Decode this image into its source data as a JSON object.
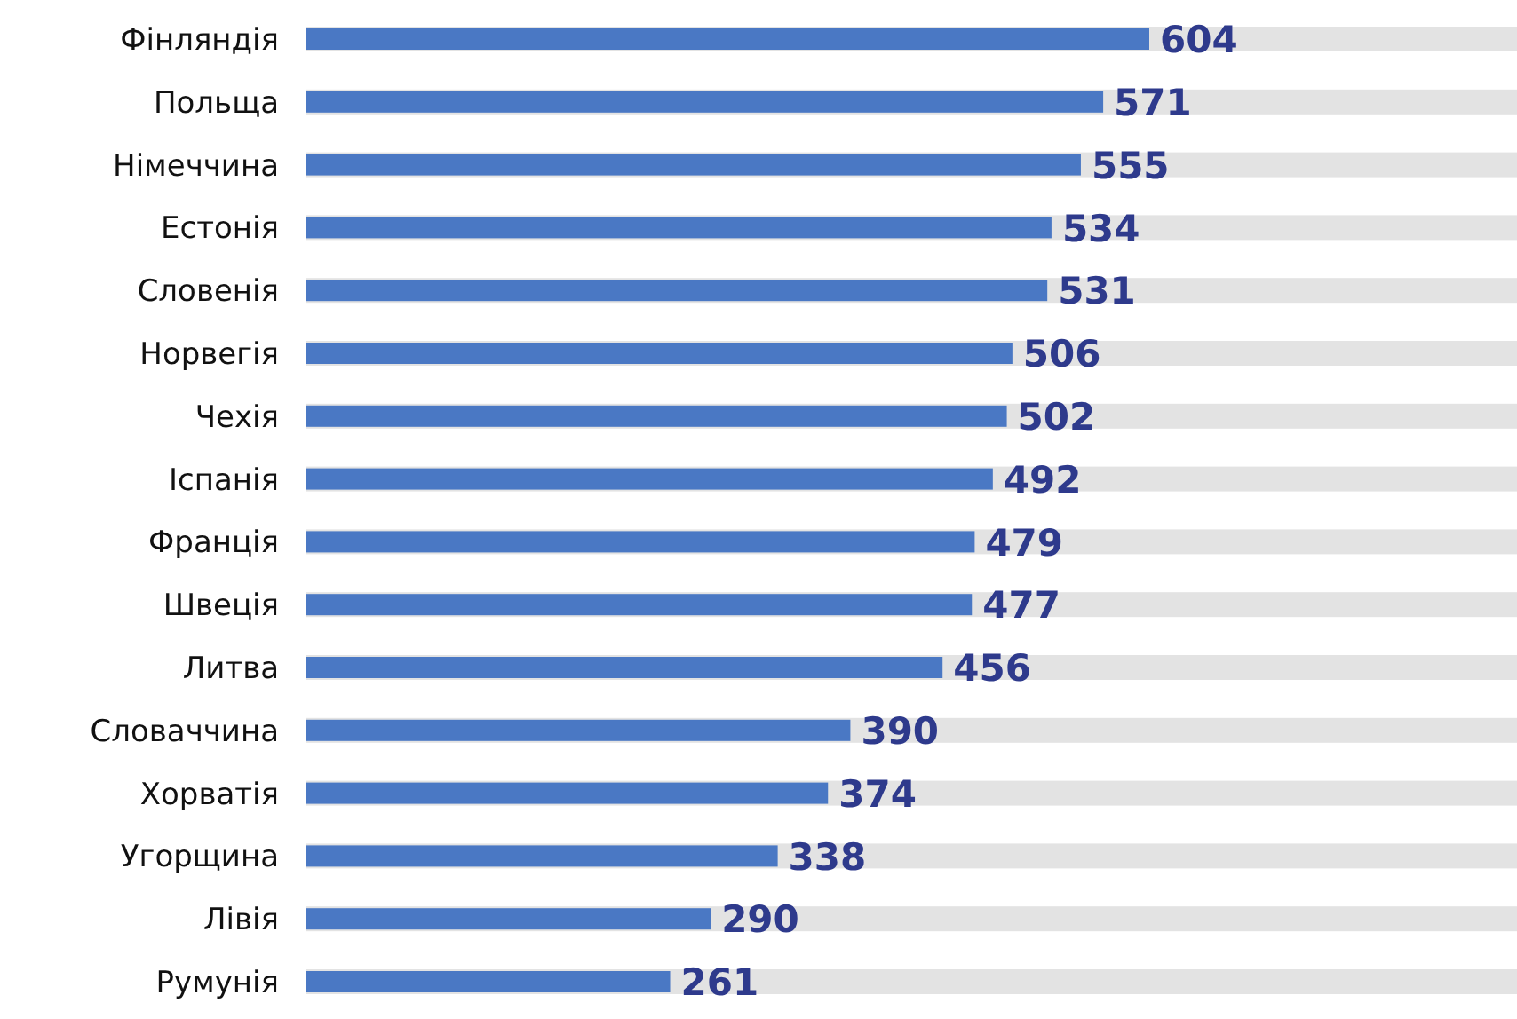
{
  "chart_data": {
    "type": "bar",
    "orientation": "horizontal",
    "categories": [
      "Фінляндія",
      "Польща",
      "Німеччина",
      "Естонія",
      "Словенія",
      "Норвегія",
      "Чехія",
      "Іспанія",
      "Франція",
      "Швеція",
      "Литва",
      "Словаччина",
      "Хорватія",
      "Угорщина",
      "Лівія",
      "Румунія"
    ],
    "values": [
      604,
      571,
      555,
      534,
      531,
      506,
      502,
      492,
      479,
      477,
      456,
      390,
      374,
      338,
      290,
      261
    ],
    "color": "#4a78c4",
    "data_labels": true
  }
}
